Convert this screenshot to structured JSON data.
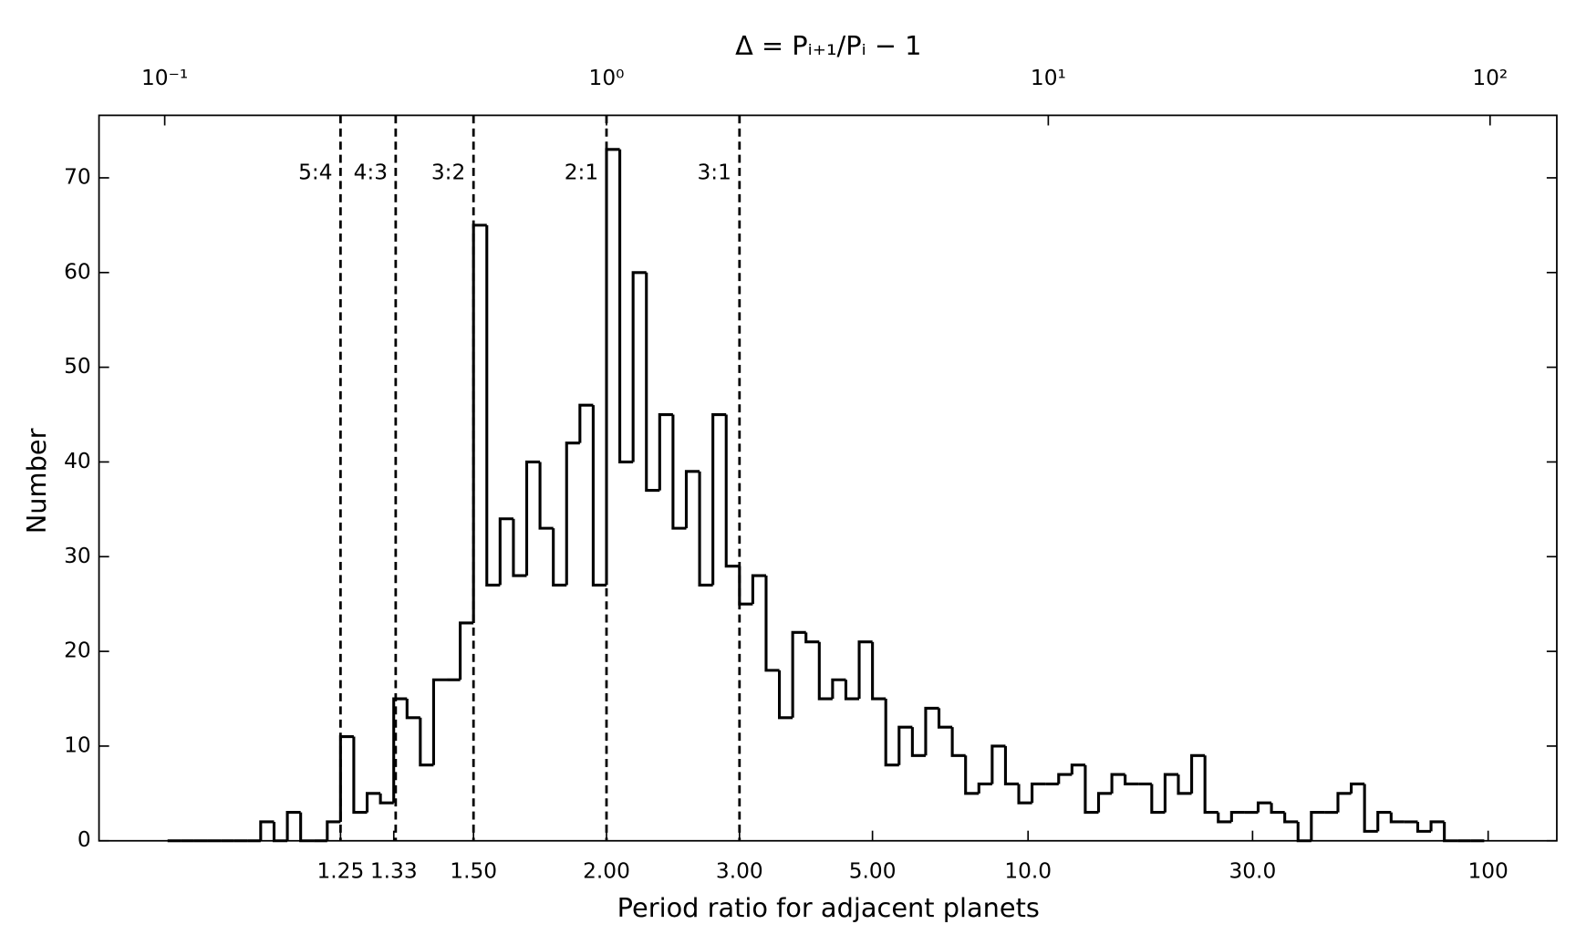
{
  "chart_data": {
    "type": "histogram",
    "x_label": "Period ratio for adjacent planets",
    "y_label": "Number",
    "top_x_label": "Δ = Pᵢ₊₁/Pᵢ − 1",
    "x_log": true,
    "color": "#000000",
    "xlim": [
      0.071,
      141.6
    ],
    "ylim": [
      0,
      76.6
    ],
    "yticks": [
      0,
      10,
      20,
      30,
      40,
      50,
      60,
      70
    ],
    "xticks": [
      {
        "value": 0.25,
        "label": "1.25"
      },
      {
        "value": 0.33,
        "label": "1.33"
      },
      {
        "value": 0.5,
        "label": "1.50"
      },
      {
        "value": 1,
        "label": "2.00"
      },
      {
        "value": 2,
        "label": "3.00"
      },
      {
        "value": 4,
        "label": "5.00"
      },
      {
        "value": 9,
        "label": "10.0"
      },
      {
        "value": 29,
        "label": "30.0"
      },
      {
        "value": 99,
        "label": "100"
      }
    ],
    "top_xticks": [
      {
        "value": 0.1,
        "label": "10⁻¹"
      },
      {
        "value": 1,
        "label": "10⁰"
      },
      {
        "value": 10,
        "label": "10¹"
      },
      {
        "value": 100,
        "label": "10²"
      }
    ],
    "reference_lines": [
      {
        "x": 0.25,
        "label": "5:4"
      },
      {
        "x": 0.3333,
        "label": "4:3"
      },
      {
        "x": 0.5,
        "label": "3:2"
      },
      {
        "x": 1,
        "label": "2:1"
      },
      {
        "x": 2,
        "label": "3:1"
      }
    ],
    "bins": [
      0.1015,
      0.1088,
      0.1166,
      0.125,
      0.134,
      0.1436,
      0.1539,
      0.1649,
      0.1768,
      0.1895,
      0.2031,
      0.2176,
      0.2333,
      0.25,
      0.2679,
      0.2872,
      0.3078,
      0.3299,
      0.3536,
      0.3789,
      0.4061,
      0.4353,
      0.4665,
      0.5,
      0.5359,
      0.5743,
      0.6156,
      0.6598,
      0.7071,
      0.7579,
      0.8123,
      0.8706,
      0.933,
      1,
      1.0718,
      1.1487,
      1.2311,
      1.3195,
      1.4142,
      1.5157,
      1.6245,
      1.7411,
      1.8661,
      2,
      2.1435,
      2.2974,
      2.4623,
      2.639,
      2.8284,
      3.0314,
      3.249,
      3.4822,
      3.7321,
      4,
      4.2871,
      4.5948,
      4.9246,
      5.278,
      5.6569,
      6.0629,
      6.498,
      6.9644,
      7.4643,
      8,
      8.5742,
      9.1896,
      9.8492,
      10.5561,
      11.3137,
      12.1257,
      12.996,
      13.9288,
      14.9285,
      16,
      17.1484,
      18.3792,
      19.6983,
      21.1121,
      22.6274,
      24.2515,
      25.9921,
      27.8576,
      29.8571,
      32,
      34.2968,
      36.7584,
      39.3966,
      42.2243,
      45.2548,
      48.5029,
      51.9841,
      55.7152,
      59.7141,
      64,
      68.5935,
      73.5167,
      78.7932,
      84.4485,
      90.5097,
      97.0059
    ],
    "values": [
      0,
      0,
      0,
      0,
      0,
      0,
      0,
      2,
      0,
      3,
      0,
      0,
      2,
      11,
      3,
      5,
      4,
      15,
      13,
      8,
      17,
      17,
      23,
      65,
      27,
      34,
      28,
      40,
      33,
      27,
      42,
      46,
      27,
      73,
      40,
      60,
      37,
      45,
      33,
      39,
      27,
      45,
      29,
      25,
      28,
      18,
      13,
      22,
      21,
      15,
      17,
      15,
      21,
      15,
      8,
      12,
      9,
      14,
      12,
      9,
      5,
      6,
      10,
      6,
      4,
      6,
      6,
      7,
      8,
      3,
      5,
      7,
      6,
      6,
      3,
      7,
      5,
      9,
      3,
      2,
      3,
      3,
      4,
      3,
      2,
      0,
      3,
      3,
      5,
      6,
      1,
      3,
      2,
      2,
      1,
      2,
      0,
      0,
      0
    ]
  }
}
